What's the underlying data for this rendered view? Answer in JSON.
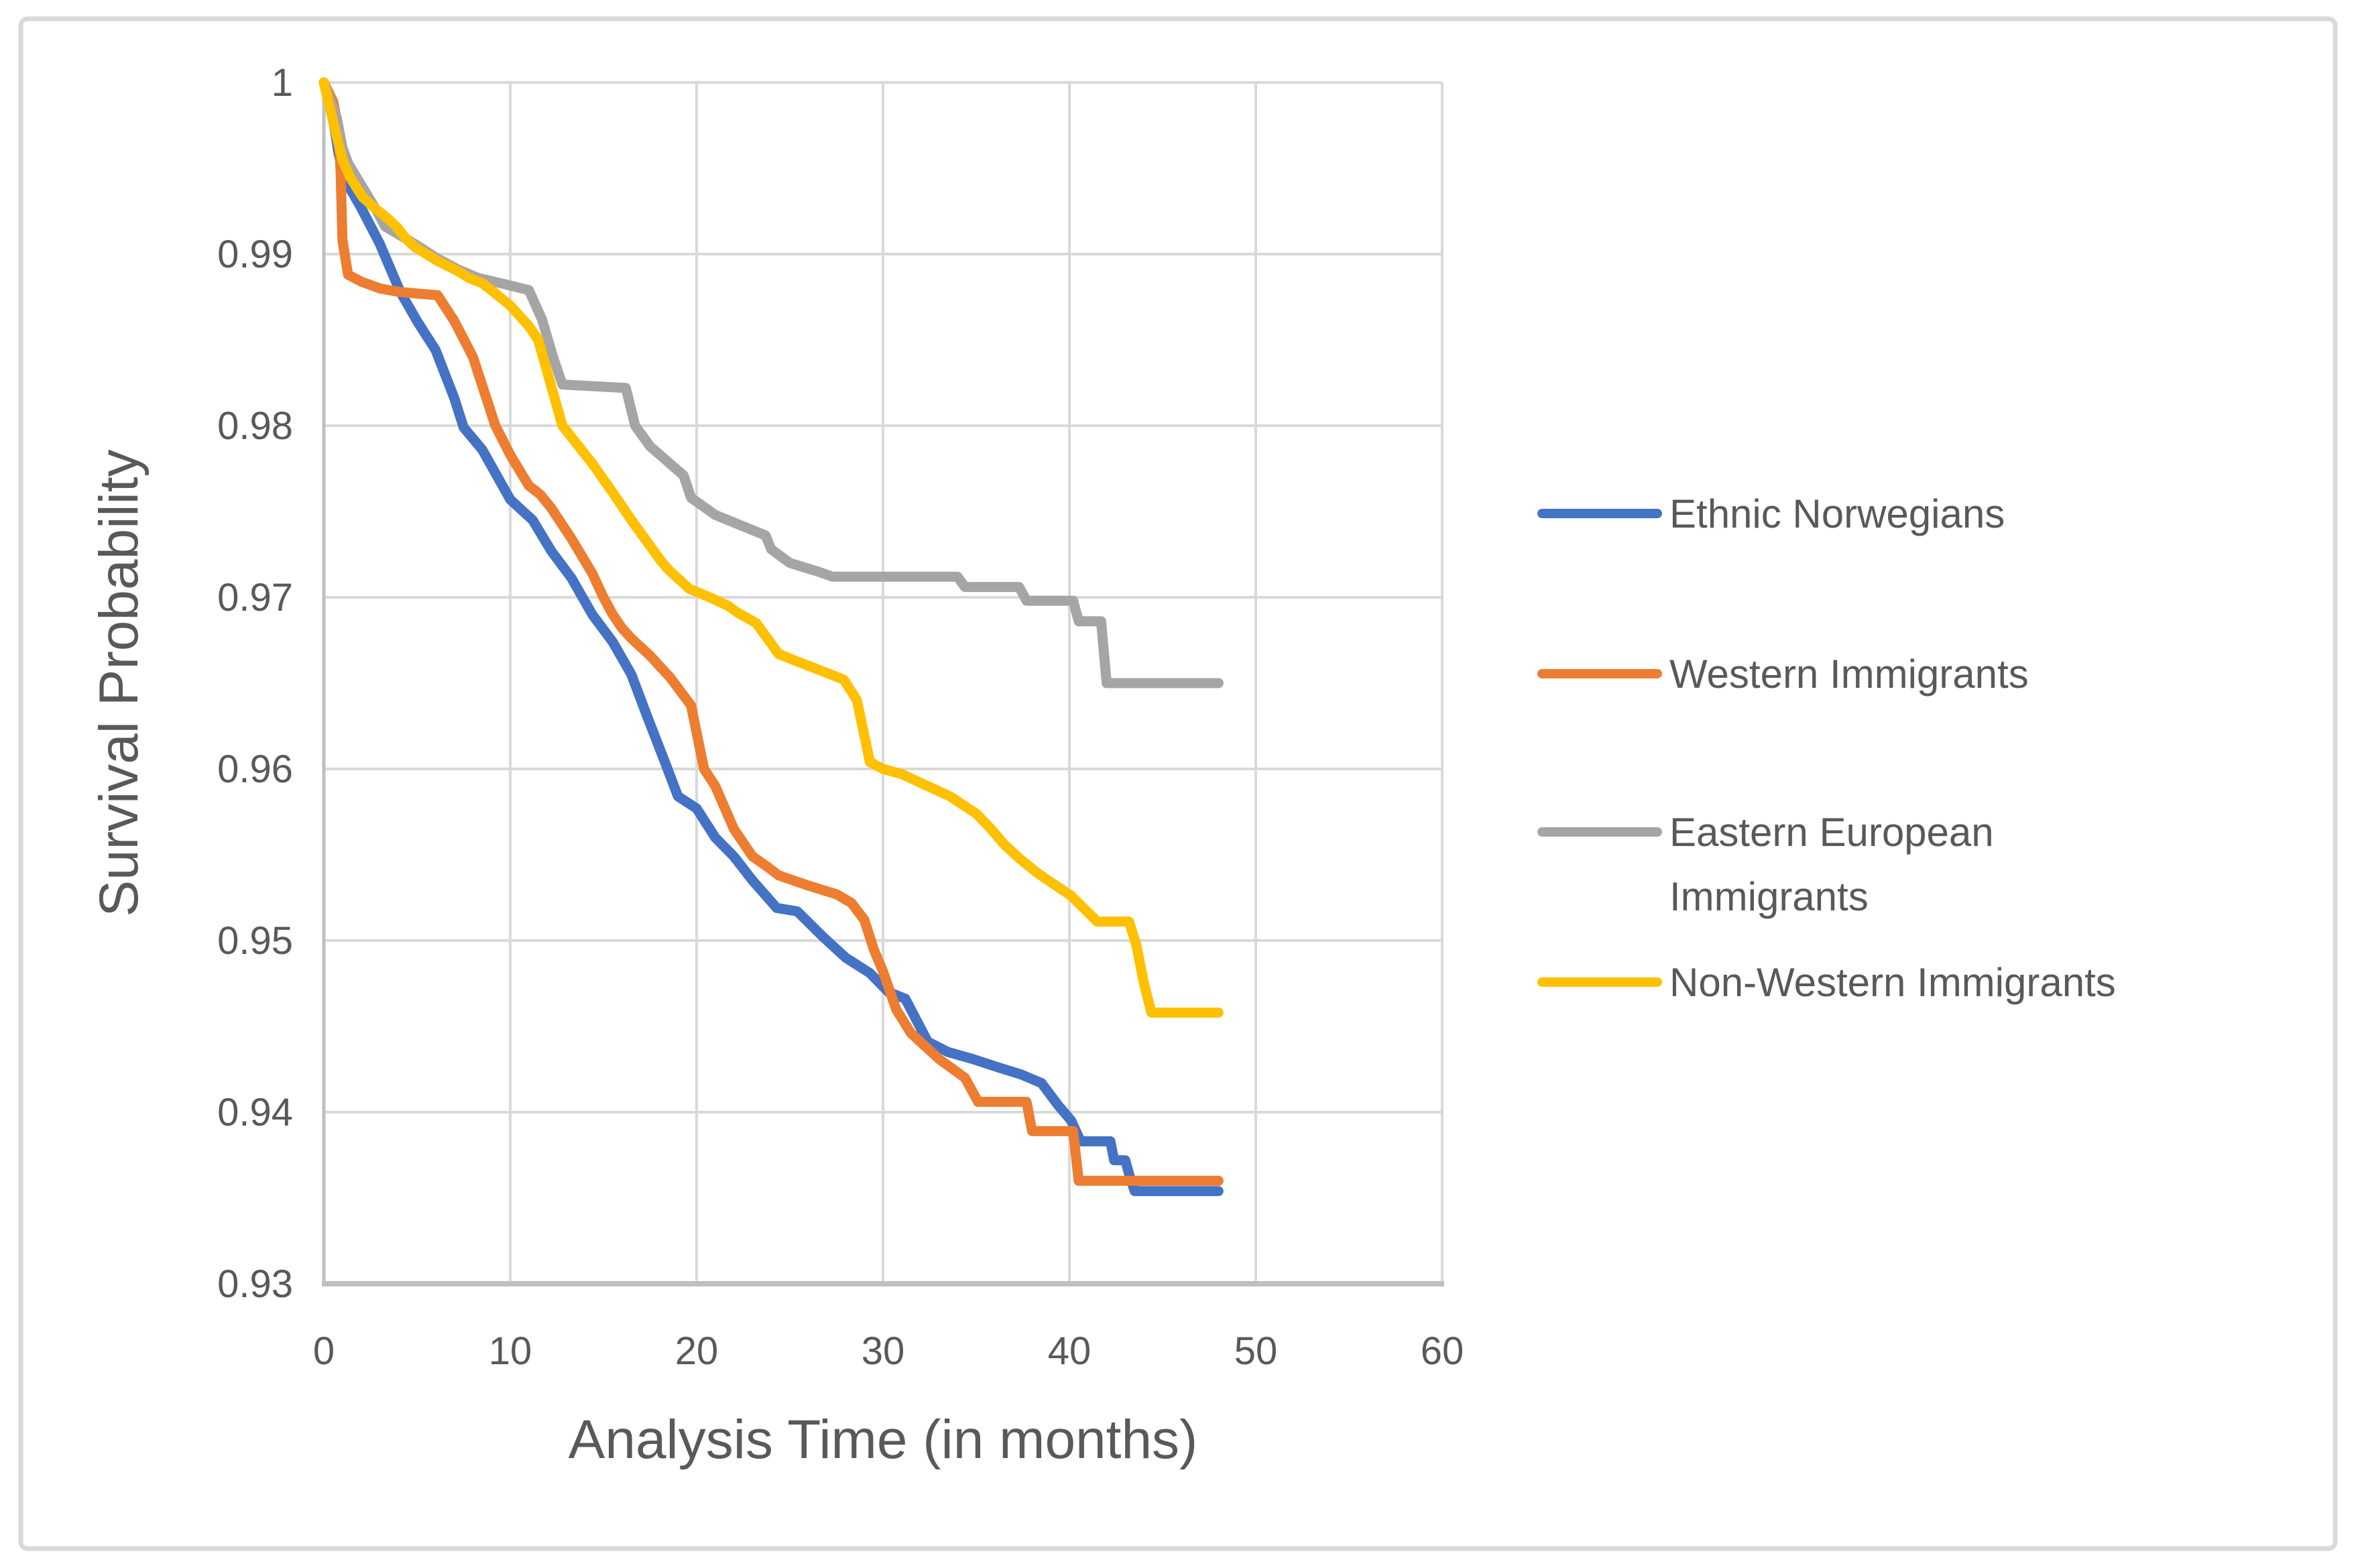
{
  "chart_data": {
    "type": "line",
    "title": "",
    "xlabel": "Analysis Time (in months)",
    "ylabel": "Survival Probability",
    "xlim": [
      0,
      60
    ],
    "ylim": [
      0.93,
      1.0
    ],
    "xticks": [
      0,
      10,
      20,
      30,
      40,
      50,
      60
    ],
    "yticks": [
      {
        "value": 1.0,
        "label": "1"
      },
      {
        "value": 0.99,
        "label": "0.99"
      },
      {
        "value": 0.98,
        "label": "0.98"
      },
      {
        "value": 0.97,
        "label": "0.97"
      },
      {
        "value": 0.96,
        "label": "0.96"
      },
      {
        "value": 0.95,
        "label": "0.95"
      },
      {
        "value": 0.94,
        "label": "0.94"
      },
      {
        "value": 0.93,
        "label": "0.93"
      }
    ],
    "grid": true,
    "legend_position": "right",
    "series": [
      {
        "name": "Ethnic Norwegians",
        "legend_lines": [
          "Ethnic Norwegians"
        ],
        "color": "#4472C4",
        "points": [
          [
            0,
            1
          ],
          [
            0.4,
            0.9985
          ],
          [
            0.8,
            0.9958
          ],
          [
            1.2,
            0.9942
          ],
          [
            2,
            0.9927
          ],
          [
            3,
            0.9906
          ],
          [
            4.1,
            0.9878
          ],
          [
            5,
            0.9861
          ],
          [
            6,
            0.9844
          ],
          [
            7,
            0.9816
          ],
          [
            7.5,
            0.9799
          ],
          [
            8.5,
            0.9786
          ],
          [
            10,
            0.9757
          ],
          [
            11.2,
            0.9745
          ],
          [
            12.2,
            0.9727
          ],
          [
            13.3,
            0.9711
          ],
          [
            14.4,
            0.969
          ],
          [
            15.5,
            0.9674
          ],
          [
            16.5,
            0.9655
          ],
          [
            17.3,
            0.9632
          ],
          [
            18.3,
            0.9604
          ],
          [
            19,
            0.9584
          ],
          [
            20,
            0.9577
          ],
          [
            21,
            0.956
          ],
          [
            22,
            0.9549
          ],
          [
            23,
            0.9535
          ],
          [
            24.3,
            0.9519
          ],
          [
            25.4,
            0.9517
          ],
          [
            26.8,
            0.9502
          ],
          [
            28,
            0.949
          ],
          [
            29.3,
            0.9481
          ],
          [
            30.3,
            0.947
          ],
          [
            31.2,
            0.9466
          ],
          [
            32.4,
            0.9441
          ],
          [
            33.5,
            0.9435
          ],
          [
            34.8,
            0.9431
          ],
          [
            36.2,
            0.9426
          ],
          [
            37.4,
            0.9422
          ],
          [
            38.5,
            0.9417
          ],
          [
            39.4,
            0.9404
          ],
          [
            40.1,
            0.9395
          ],
          [
            40.6,
            0.9383
          ],
          [
            42.2,
            0.9383
          ],
          [
            42.4,
            0.9372
          ],
          [
            43,
            0.9372
          ],
          [
            43.2,
            0.9364
          ],
          [
            43.5,
            0.9354
          ],
          [
            48,
            0.9354
          ]
        ]
      },
      {
        "name": "Western Immigrants",
        "legend_lines": [
          "Western Immigrants"
        ],
        "color": "#ED7D31",
        "points": [
          [
            0,
            1
          ],
          [
            0.5,
            0.9989
          ],
          [
            0.8,
            0.9972
          ],
          [
            0.9,
            0.9948
          ],
          [
            1,
            0.9908
          ],
          [
            1.3,
            0.9888
          ],
          [
            2,
            0.9884
          ],
          [
            3,
            0.988
          ],
          [
            4,
            0.9878
          ],
          [
            5,
            0.9877
          ],
          [
            6.1,
            0.9876
          ],
          [
            7,
            0.9861
          ],
          [
            8,
            0.984
          ],
          [
            9.2,
            0.98
          ],
          [
            10,
            0.9783
          ],
          [
            11,
            0.9765
          ],
          [
            11.6,
            0.976
          ],
          [
            12.2,
            0.9752
          ],
          [
            13.3,
            0.9734
          ],
          [
            14.4,
            0.9714
          ],
          [
            15,
            0.97
          ],
          [
            15.5,
            0.969
          ],
          [
            16,
            0.9682
          ],
          [
            16.5,
            0.9676
          ],
          [
            17.5,
            0.9666
          ],
          [
            18.6,
            0.9653
          ],
          [
            19.7,
            0.9637
          ],
          [
            20.4,
            0.96
          ],
          [
            21,
            0.959
          ],
          [
            22,
            0.9565
          ],
          [
            23,
            0.9549
          ],
          [
            23.8,
            0.9543
          ],
          [
            24.4,
            0.9538
          ],
          [
            26,
            0.9532
          ],
          [
            27.5,
            0.9527
          ],
          [
            28.3,
            0.9522
          ],
          [
            29,
            0.9512
          ],
          [
            29.5,
            0.9495
          ],
          [
            30,
            0.9482
          ],
          [
            30.7,
            0.946
          ],
          [
            31.5,
            0.9446
          ],
          [
            33,
            0.9431
          ],
          [
            34.4,
            0.942
          ],
          [
            35.1,
            0.9406
          ],
          [
            37.7,
            0.9406
          ],
          [
            38,
            0.9389
          ],
          [
            40.2,
            0.9389
          ],
          [
            40.5,
            0.936
          ],
          [
            48,
            0.936
          ]
        ]
      },
      {
        "name": "Eastern European Immigrants",
        "legend_lines": [
          "Eastern European",
          "Immigrants"
        ],
        "color": "#A5A5A5",
        "points": [
          [
            0,
            1
          ],
          [
            0.7,
            0.9979
          ],
          [
            1,
            0.9962
          ],
          [
            1.3,
            0.9953
          ],
          [
            1.8,
            0.9944
          ],
          [
            2.3,
            0.9935
          ],
          [
            2.9,
            0.9924
          ],
          [
            3.3,
            0.9916
          ],
          [
            4.4,
            0.9909
          ],
          [
            5.3,
            0.9903
          ],
          [
            6,
            0.9898
          ],
          [
            7.2,
            0.9891
          ],
          [
            8.3,
            0.9886
          ],
          [
            9.5,
            0.9883
          ],
          [
            11,
            0.9879
          ],
          [
            11.7,
            0.9862
          ],
          [
            12.3,
            0.984
          ],
          [
            12.8,
            0.9824
          ],
          [
            16.2,
            0.9822
          ],
          [
            16.7,
            0.98
          ],
          [
            17.5,
            0.9788
          ],
          [
            19.3,
            0.9771
          ],
          [
            19.7,
            0.9758
          ],
          [
            21,
            0.9748
          ],
          [
            23.7,
            0.9736
          ],
          [
            24,
            0.9728
          ],
          [
            25,
            0.972
          ],
          [
            26.5,
            0.9715
          ],
          [
            27.3,
            0.9712
          ],
          [
            34,
            0.9712
          ],
          [
            34.4,
            0.9706
          ],
          [
            37.3,
            0.9706
          ],
          [
            37.7,
            0.9698
          ],
          [
            40.2,
            0.9698
          ],
          [
            40.5,
            0.9686
          ],
          [
            41.7,
            0.9686
          ],
          [
            42,
            0.965
          ],
          [
            48,
            0.965
          ]
        ]
      },
      {
        "name": "Non-Western Immigrants",
        "legend_lines": [
          "Non-Western Immigrants"
        ],
        "color": "#FFC000",
        "points": [
          [
            0,
            1
          ],
          [
            0.7,
            0.9968
          ],
          [
            1,
            0.9955
          ],
          [
            1.4,
            0.9945
          ],
          [
            1.8,
            0.9938
          ],
          [
            2.1,
            0.9933
          ],
          [
            2.7,
            0.9927
          ],
          [
            3.3,
            0.9922
          ],
          [
            3.9,
            0.9916
          ],
          [
            4.4,
            0.9909
          ],
          [
            4.9,
            0.9904
          ],
          [
            5.5,
            0.99
          ],
          [
            6.1,
            0.9896
          ],
          [
            7.2,
            0.989
          ],
          [
            7.8,
            0.9886
          ],
          [
            8.5,
            0.9883
          ],
          [
            9.1,
            0.9878
          ],
          [
            10,
            0.987
          ],
          [
            11,
            0.9858
          ],
          [
            11.5,
            0.985
          ],
          [
            12.8,
            0.98
          ],
          [
            14.4,
            0.9778
          ],
          [
            15.5,
            0.9761
          ],
          [
            16.5,
            0.9745
          ],
          [
            17.5,
            0.973
          ],
          [
            18.1,
            0.9721
          ],
          [
            18.5,
            0.9716
          ],
          [
            19.6,
            0.9705
          ],
          [
            20.7,
            0.97
          ],
          [
            21.7,
            0.9695
          ],
          [
            22.2,
            0.9691
          ],
          [
            23.2,
            0.9685
          ],
          [
            24.4,
            0.9667
          ],
          [
            25.3,
            0.9663
          ],
          [
            26.5,
            0.9658
          ],
          [
            27.9,
            0.9652
          ],
          [
            28.6,
            0.964
          ],
          [
            29.3,
            0.9604
          ],
          [
            30,
            0.96
          ],
          [
            31,
            0.9597
          ],
          [
            33.6,
            0.9584
          ],
          [
            35,
            0.9574
          ],
          [
            35.8,
            0.9565
          ],
          [
            36.5,
            0.9556
          ],
          [
            37.3,
            0.9548
          ],
          [
            38.2,
            0.954
          ],
          [
            39,
            0.9534
          ],
          [
            39.7,
            0.9529
          ],
          [
            40.1,
            0.9526
          ],
          [
            41.5,
            0.9511
          ],
          [
            43.2,
            0.9511
          ],
          [
            43.6,
            0.9497
          ],
          [
            44,
            0.9475
          ],
          [
            44.4,
            0.9458
          ],
          [
            48,
            0.9458
          ]
        ]
      }
    ],
    "colors": {
      "grid": "#D9D9D9",
      "axis_line": "#BFBFBF",
      "text": "#595959",
      "frame": "#D9D9D9",
      "background": "#FFFFFF"
    }
  }
}
